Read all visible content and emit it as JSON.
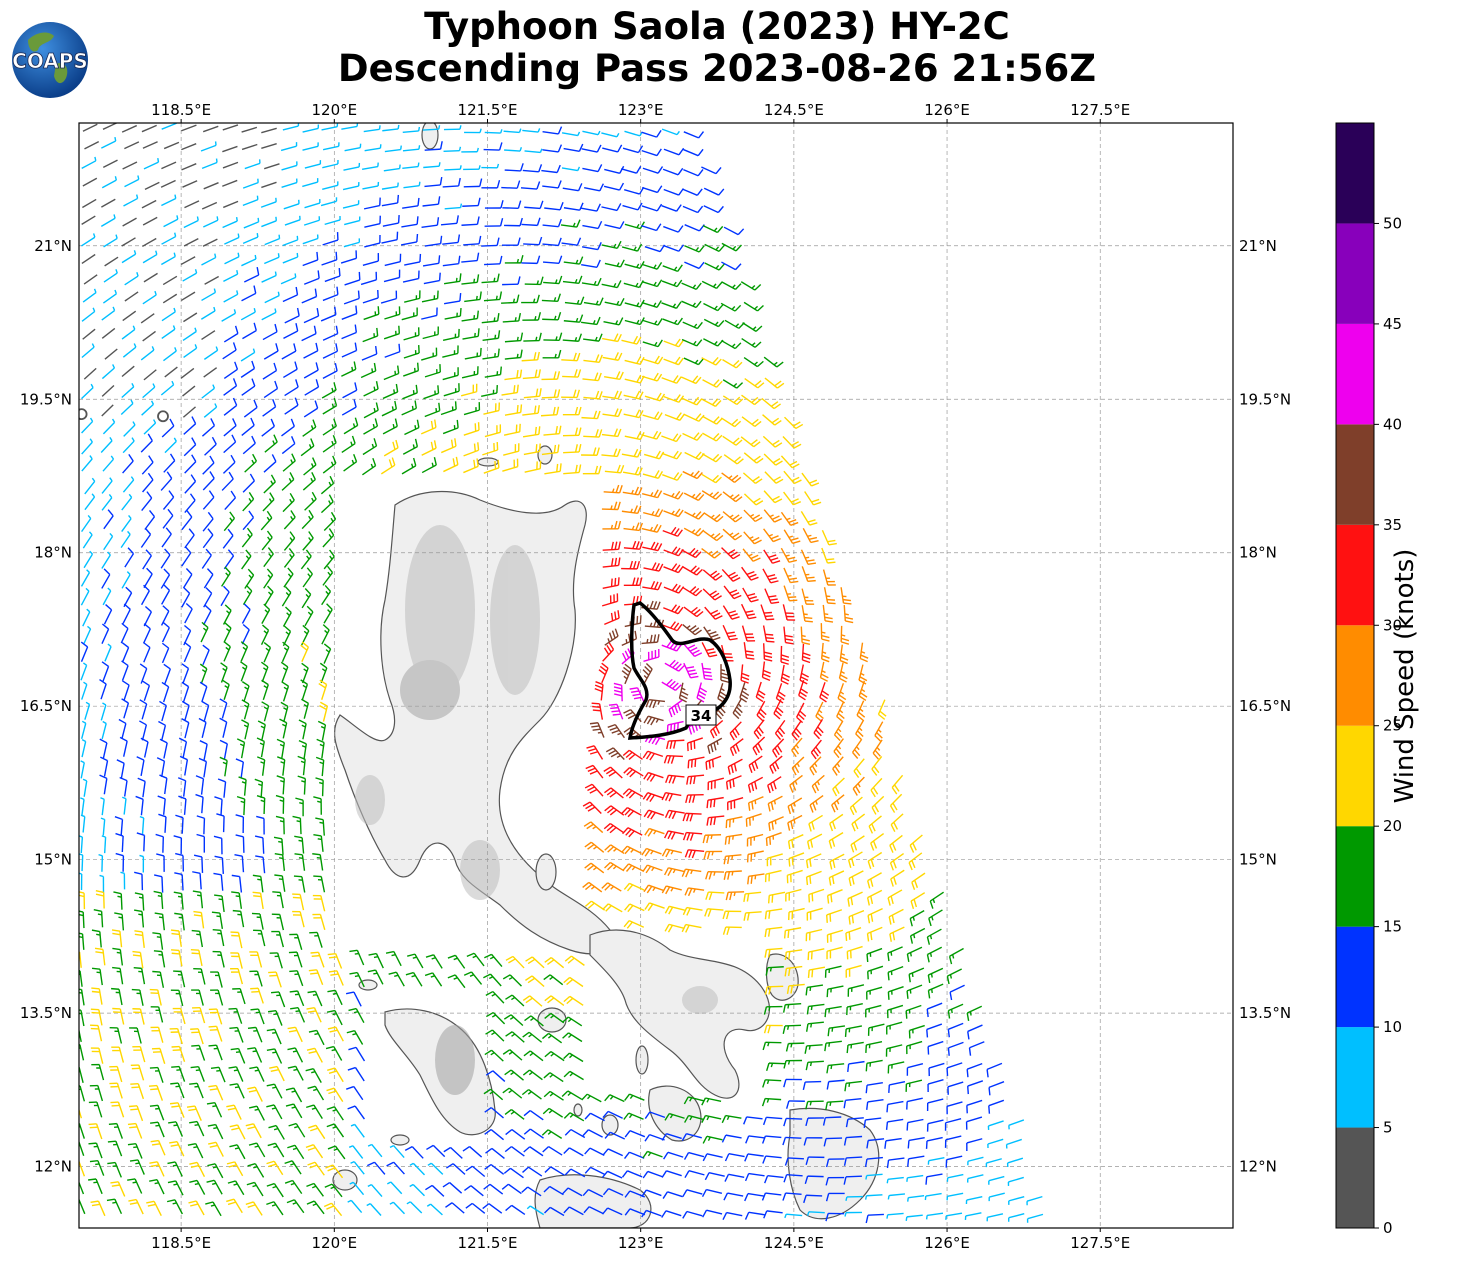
{
  "title": {
    "line1": "Typhoon Saola (2023) HY-2C",
    "line2": "Descending Pass 2023-08-26 21:56Z"
  },
  "logo": {
    "text": "COAPS"
  },
  "map": {
    "lon_range": [
      117.5,
      128.8
    ],
    "lat_range": [
      11.4,
      22.2
    ],
    "lon_ticks": [
      "118.5°E",
      "120°E",
      "121.5°E",
      "123°E",
      "124.5°E",
      "126°E",
      "127.5°E"
    ],
    "lon_tick_values": [
      118.5,
      120,
      121.5,
      123,
      124.5,
      126,
      127.5
    ],
    "lat_ticks": [
      "21°N",
      "19.5°N",
      "18°N",
      "16.5°N",
      "15°N",
      "13.5°N",
      "12°N"
    ],
    "lat_tick_values": [
      21,
      19.5,
      18,
      16.5,
      15,
      13.5,
      12
    ],
    "gridlines": true,
    "storm_center": [
      123.2,
      16.7
    ],
    "wind_radius_contour_label": "34"
  },
  "colorbar": {
    "label": "Wind Speed (knots)",
    "tick_labels": [
      "0",
      "5",
      "10",
      "15",
      "20",
      "25",
      "30",
      "35",
      "40",
      "45",
      "50"
    ],
    "bins": [
      {
        "min": 0,
        "max": 5,
        "color": "#555555"
      },
      {
        "min": 5,
        "max": 10,
        "color": "#00bfff"
      },
      {
        "min": 10,
        "max": 15,
        "color": "#0033ff"
      },
      {
        "min": 15,
        "max": 20,
        "color": "#009900"
      },
      {
        "min": 20,
        "max": 25,
        "color": "#ffd700"
      },
      {
        "min": 25,
        "max": 30,
        "color": "#ff8c00"
      },
      {
        "min": 30,
        "max": 35,
        "color": "#ff1111"
      },
      {
        "min": 35,
        "max": 40,
        "color": "#7f3f2a"
      },
      {
        "min": 40,
        "max": 45,
        "color": "#ee00ee"
      },
      {
        "min": 45,
        "max": 50,
        "color": "#8800bb"
      },
      {
        "min": 50,
        "max": 55,
        "color": "#2a0058"
      }
    ]
  }
}
